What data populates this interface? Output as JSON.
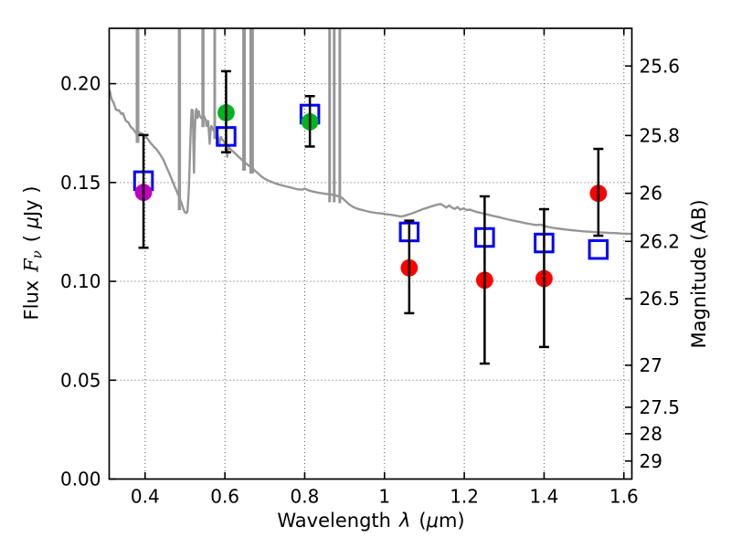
{
  "figure": {
    "background": "#FFFFFF",
    "labels": {
      "x": {
        "prefix": "Wavelength",
        "symbol": "λ",
        "unit_prefix": "(",
        "unit_symbol": "μ",
        "unit_suffix": "m)"
      },
      "y_left": {
        "prefix": "Flux",
        "symbol": "F",
        "subscript": "ν",
        "unit_prefix": "( ",
        "unit_symbol": "μ",
        "unit_suffix": "Jy )"
      },
      "y_right": {
        "text": "Magnitude (AB)"
      }
    }
  },
  "chart_data": {
    "type": "scatter",
    "title": "",
    "xlabel": "Wavelength λ (μm)",
    "ylabel_left": "Flux Fν ( μJy )",
    "ylabel_right": "Magnitude (AB)",
    "xlim": [
      0.31,
      1.62
    ],
    "ylim": [
      0,
      0.228
    ],
    "grid": {
      "on": true,
      "style": "dotted",
      "color": "#5a5a5a"
    },
    "x_ticks": {
      "values": [
        0.4,
        0.6,
        0.8,
        1.0,
        1.2,
        1.4,
        1.6
      ],
      "labels": [
        "0.4",
        "0.6",
        "0.8",
        "1",
        "1.2",
        "1.4",
        "1.6"
      ]
    },
    "y_ticks_left": {
      "values": [
        0.0,
        0.05,
        0.1,
        0.15,
        0.2
      ],
      "labels": [
        "0.00",
        "0.05",
        "0.10",
        "0.15",
        "0.20"
      ]
    },
    "y_ticks_right": {
      "note": "AB magnitudes mapped to flux via m = zp - 2.5 log10(F)",
      "ab_zeropoint": 23.9,
      "mags": [
        25.6,
        25.8,
        26,
        26.2,
        26.5,
        27,
        27.5,
        28,
        29
      ],
      "labels": [
        "25.6",
        "25.8",
        "26",
        "26.2",
        "26.5",
        "27",
        "27.5",
        "28",
        "29"
      ]
    },
    "series": [
      {
        "name": "magenta-circle",
        "marker": "filled-circle",
        "color": "#BF00BF",
        "points": [
          {
            "x": 0.396,
            "y": 0.145,
            "err_minus": 0.028,
            "err_plus": 0.029
          }
        ]
      },
      {
        "name": "green-circles",
        "marker": "filled-circle",
        "color": "#00B41E",
        "points": [
          {
            "x": 0.603,
            "y": 0.1853,
            "err_minus": 0.02,
            "err_plus": 0.021
          },
          {
            "x": 0.813,
            "y": 0.1807,
            "err_minus": 0.0125,
            "err_plus": 0.013
          }
        ]
      },
      {
        "name": "red-circles",
        "marker": "filled-circle",
        "color": "#FF0000",
        "points": [
          {
            "x": 1.062,
            "y": 0.1068,
            "err_minus": 0.0229,
            "err_plus": 0.0239
          },
          {
            "x": 1.251,
            "y": 0.1006,
            "err_minus": 0.0422,
            "err_plus": 0.0424
          },
          {
            "x": 1.4,
            "y": 0.1014,
            "err_minus": 0.0346,
            "err_plus": 0.0351
          },
          {
            "x": 1.536,
            "y": 0.1445,
            "err_minus": 0.0214,
            "err_plus": 0.0225
          }
        ]
      }
    ],
    "model_photometry": {
      "name": "blue-open-squares",
      "marker": "open-square",
      "color": "#0000FF",
      "points": [
        {
          "x": 0.396,
          "y": 0.1509
        },
        {
          "x": 0.603,
          "y": 0.1733
        },
        {
          "x": 0.813,
          "y": 0.1846
        },
        {
          "x": 1.062,
          "y": 0.125
        },
        {
          "x": 1.251,
          "y": 0.1222
        },
        {
          "x": 1.4,
          "y": 0.1194
        },
        {
          "x": 1.536,
          "y": 0.1161
        }
      ]
    },
    "spectrum": {
      "name": "model-spectrum",
      "color": "#969696",
      "emission_spikes": [
        {
          "x": 0.381,
          "base": 0.17,
          "w": 4
        },
        {
          "x": 0.486,
          "base": 0.136,
          "w": 3.5
        },
        {
          "x": 0.545,
          "base": 0.178,
          "w": 3.5
        },
        {
          "x": 0.5745,
          "base": 0.172,
          "w": 3
        },
        {
          "x": 0.648,
          "base": 0.156,
          "w": 4
        },
        {
          "x": 0.667,
          "base": 0.1545,
          "w": 5
        },
        {
          "x": 0.8625,
          "base": 0.14,
          "w": 3
        },
        {
          "x": 0.874,
          "base": 0.14,
          "w": 3
        },
        {
          "x": 0.888,
          "base": 0.1395,
          "w": 3
        }
      ],
      "points": [
        [
          0.31,
          0.197
        ],
        [
          0.3125,
          0.1955
        ],
        [
          0.315,
          0.193
        ],
        [
          0.3175,
          0.1914
        ],
        [
          0.32,
          0.1909
        ],
        [
          0.3235,
          0.1889
        ],
        [
          0.327,
          0.1869
        ],
        [
          0.3305,
          0.1865
        ],
        [
          0.334,
          0.1866
        ],
        [
          0.3375,
          0.1856
        ],
        [
          0.341,
          0.1846
        ],
        [
          0.3445,
          0.1851
        ],
        [
          0.348,
          0.1832
        ],
        [
          0.3515,
          0.1813
        ],
        [
          0.355,
          0.1808
        ],
        [
          0.3585,
          0.1803
        ],
        [
          0.362,
          0.1788
        ],
        [
          0.3655,
          0.1778
        ],
        [
          0.369,
          0.1773
        ],
        [
          0.3725,
          0.1763
        ],
        [
          0.376,
          0.1753
        ],
        [
          0.3795,
          0.1743
        ],
        [
          0.383,
          0.1741
        ],
        [
          0.387,
          0.1752
        ],
        [
          0.391,
          0.1749
        ],
        [
          0.395,
          0.1744
        ],
        [
          0.399,
          0.1736
        ],
        [
          0.403,
          0.173
        ],
        [
          0.407,
          0.1718
        ],
        [
          0.411,
          0.1708
        ],
        [
          0.415,
          0.1697
        ],
        [
          0.419,
          0.1689
        ],
        [
          0.423,
          0.1678
        ],
        [
          0.427,
          0.1672
        ],
        [
          0.431,
          0.1662
        ],
        [
          0.435,
          0.165
        ],
        [
          0.439,
          0.1638
        ],
        [
          0.443,
          0.1625
        ],
        [
          0.447,
          0.161
        ],
        [
          0.451,
          0.159
        ],
        [
          0.455,
          0.1572
        ],
        [
          0.459,
          0.1554
        ],
        [
          0.463,
          0.1535
        ],
        [
          0.467,
          0.1515
        ],
        [
          0.471,
          0.1496
        ],
        [
          0.475,
          0.1476
        ],
        [
          0.479,
          0.1457
        ],
        [
          0.483,
          0.1437
        ],
        [
          0.487,
          0.1418
        ],
        [
          0.491,
          0.1398
        ],
        [
          0.495,
          0.1372
        ],
        [
          0.499,
          0.1352
        ],
        [
          0.5025,
          0.1345
        ],
        [
          0.506,
          0.1352
        ],
        [
          0.509,
          0.144
        ],
        [
          0.511,
          0.155
        ],
        [
          0.513,
          0.168
        ],
        [
          0.515,
          0.18
        ],
        [
          0.5165,
          0.1868
        ],
        [
          0.518,
          0.183
        ],
        [
          0.5195,
          0.1866
        ],
        [
          0.521,
          0.17
        ],
        [
          0.5225,
          0.1549
        ],
        [
          0.524,
          0.169
        ],
        [
          0.5255,
          0.18
        ],
        [
          0.527,
          0.186
        ],
        [
          0.5285,
          0.1872
        ],
        [
          0.53,
          0.1855
        ],
        [
          0.5315,
          0.1826
        ],
        [
          0.533,
          0.1856
        ],
        [
          0.5345,
          0.1861
        ],
        [
          0.536,
          0.1841
        ],
        [
          0.5375,
          0.1836
        ],
        [
          0.539,
          0.1831
        ],
        [
          0.5405,
          0.1826
        ],
        [
          0.542,
          0.1831
        ],
        [
          0.544,
          0.1826
        ],
        [
          0.546,
          0.1821
        ],
        [
          0.548,
          0.1836
        ],
        [
          0.55,
          0.1823
        ],
        [
          0.552,
          0.1818
        ],
        [
          0.554,
          0.1785
        ],
        [
          0.556,
          0.1795
        ],
        [
          0.558,
          0.1811
        ],
        [
          0.56,
          0.175
        ],
        [
          0.562,
          0.1695
        ],
        [
          0.564,
          0.176
        ],
        [
          0.566,
          0.1786
        ],
        [
          0.568,
          0.1778
        ],
        [
          0.57,
          0.1768
        ],
        [
          0.572,
          0.1763
        ],
        [
          0.574,
          0.1758
        ],
        [
          0.576,
          0.1753
        ],
        [
          0.578,
          0.1749
        ],
        [
          0.58,
          0.1744
        ],
        [
          0.582,
          0.1734
        ],
        [
          0.584,
          0.1704
        ],
        [
          0.586,
          0.1685
        ],
        [
          0.588,
          0.172
        ],
        [
          0.59,
          0.173
        ],
        [
          0.592,
          0.1721
        ],
        [
          0.594,
          0.1716
        ],
        [
          0.596,
          0.1712
        ],
        [
          0.598,
          0.1707
        ],
        [
          0.6,
          0.1698
        ],
        [
          0.602,
          0.1684
        ],
        [
          0.604,
          0.1658
        ],
        [
          0.606,
          0.163
        ],
        [
          0.608,
          0.1658
        ],
        [
          0.61,
          0.1679
        ],
        [
          0.613,
          0.1672
        ],
        [
          0.616,
          0.1665
        ],
        [
          0.62,
          0.1657
        ],
        [
          0.624,
          0.165
        ],
        [
          0.628,
          0.1643
        ],
        [
          0.632,
          0.1634
        ],
        [
          0.636,
          0.1627
        ],
        [
          0.64,
          0.162
        ],
        [
          0.644,
          0.1612
        ],
        [
          0.648,
          0.1604
        ],
        [
          0.652,
          0.1597
        ],
        [
          0.656,
          0.1592
        ],
        [
          0.66,
          0.1585
        ],
        [
          0.664,
          0.1578
        ],
        [
          0.668,
          0.1572
        ],
        [
          0.672,
          0.1566
        ],
        [
          0.677,
          0.1557
        ],
        [
          0.682,
          0.1548
        ],
        [
          0.687,
          0.1539
        ],
        [
          0.692,
          0.153
        ],
        [
          0.697,
          0.1523
        ],
        [
          0.703,
          0.1516
        ],
        [
          0.709,
          0.151
        ],
        [
          0.715,
          0.1505
        ],
        [
          0.721,
          0.15
        ],
        [
          0.727,
          0.1495
        ],
        [
          0.734,
          0.1491
        ],
        [
          0.741,
          0.1487
        ],
        [
          0.748,
          0.1483
        ],
        [
          0.756,
          0.1479
        ],
        [
          0.764,
          0.1475
        ],
        [
          0.772,
          0.1471
        ],
        [
          0.78,
          0.1467
        ],
        [
          0.788,
          0.1464
        ],
        [
          0.795,
          0.1464
        ],
        [
          0.8,
          0.1469
        ],
        [
          0.805,
          0.1464
        ],
        [
          0.812,
          0.1459
        ],
        [
          0.819,
          0.1455
        ],
        [
          0.826,
          0.1452
        ],
        [
          0.833,
          0.1449
        ],
        [
          0.84,
          0.1447
        ],
        [
          0.848,
          0.1444
        ],
        [
          0.856,
          0.1442
        ],
        [
          0.864,
          0.144
        ],
        [
          0.872,
          0.1437
        ],
        [
          0.88,
          0.1433
        ],
        [
          0.888,
          0.1428
        ],
        [
          0.895,
          0.142
        ],
        [
          0.902,
          0.1407
        ],
        [
          0.909,
          0.1394
        ],
        [
          0.916,
          0.1383
        ],
        [
          0.923,
          0.1375
        ],
        [
          0.93,
          0.1369
        ],
        [
          0.938,
          0.1364
        ],
        [
          0.946,
          0.136
        ],
        [
          0.954,
          0.1356
        ],
        [
          0.962,
          0.1352
        ],
        [
          0.97,
          0.1349
        ],
        [
          0.979,
          0.1346
        ],
        [
          0.988,
          0.1344
        ],
        [
          0.997,
          0.1342
        ],
        [
          1.006,
          0.1339
        ],
        [
          1.015,
          0.1337
        ],
        [
          1.024,
          0.1334
        ],
        [
          1.033,
          0.1331
        ],
        [
          1.042,
          0.1328
        ],
        [
          1.051,
          0.1332
        ],
        [
          1.06,
          0.1338
        ],
        [
          1.069,
          0.1344
        ],
        [
          1.078,
          0.1351
        ],
        [
          1.087,
          0.1358
        ],
        [
          1.096,
          0.1365
        ],
        [
          1.105,
          0.1371
        ],
        [
          1.114,
          0.1377
        ],
        [
          1.123,
          0.1383
        ],
        [
          1.132,
          0.1388
        ],
        [
          1.141,
          0.1391
        ],
        [
          1.148,
          0.1383
        ],
        [
          1.155,
          0.1373
        ],
        [
          1.162,
          0.1384
        ],
        [
          1.169,
          0.1373
        ],
        [
          1.176,
          0.1366
        ],
        [
          1.183,
          0.1376
        ],
        [
          1.19,
          0.1363
        ],
        [
          1.198,
          0.1369
        ],
        [
          1.206,
          0.1361
        ],
        [
          1.214,
          0.1363
        ],
        [
          1.222,
          0.1357
        ],
        [
          1.23,
          0.1352
        ],
        [
          1.24,
          0.1347
        ],
        [
          1.25,
          0.1342
        ],
        [
          1.262,
          0.1336
        ],
        [
          1.274,
          0.133
        ],
        [
          1.286,
          0.1325
        ],
        [
          1.298,
          0.1319
        ],
        [
          1.312,
          0.1312
        ],
        [
          1.326,
          0.1306
        ],
        [
          1.34,
          0.13
        ],
        [
          1.354,
          0.1294
        ],
        [
          1.368,
          0.1289
        ],
        [
          1.38,
          0.1285
        ],
        [
          1.39,
          0.1287
        ],
        [
          1.398,
          0.1283
        ],
        [
          1.406,
          0.1277
        ],
        [
          1.416,
          0.1273
        ],
        [
          1.428,
          0.1269
        ],
        [
          1.44,
          0.1266
        ],
        [
          1.454,
          0.1262
        ],
        [
          1.468,
          0.1259
        ],
        [
          1.482,
          0.1256
        ],
        [
          1.498,
          0.1253
        ],
        [
          1.514,
          0.1251
        ],
        [
          1.53,
          0.1249
        ],
        [
          1.546,
          0.1247
        ],
        [
          1.562,
          0.1245
        ],
        [
          1.578,
          0.1244
        ],
        [
          1.594,
          0.1242
        ],
        [
          1.61,
          0.1241
        ],
        [
          1.62,
          0.124
        ]
      ]
    }
  }
}
